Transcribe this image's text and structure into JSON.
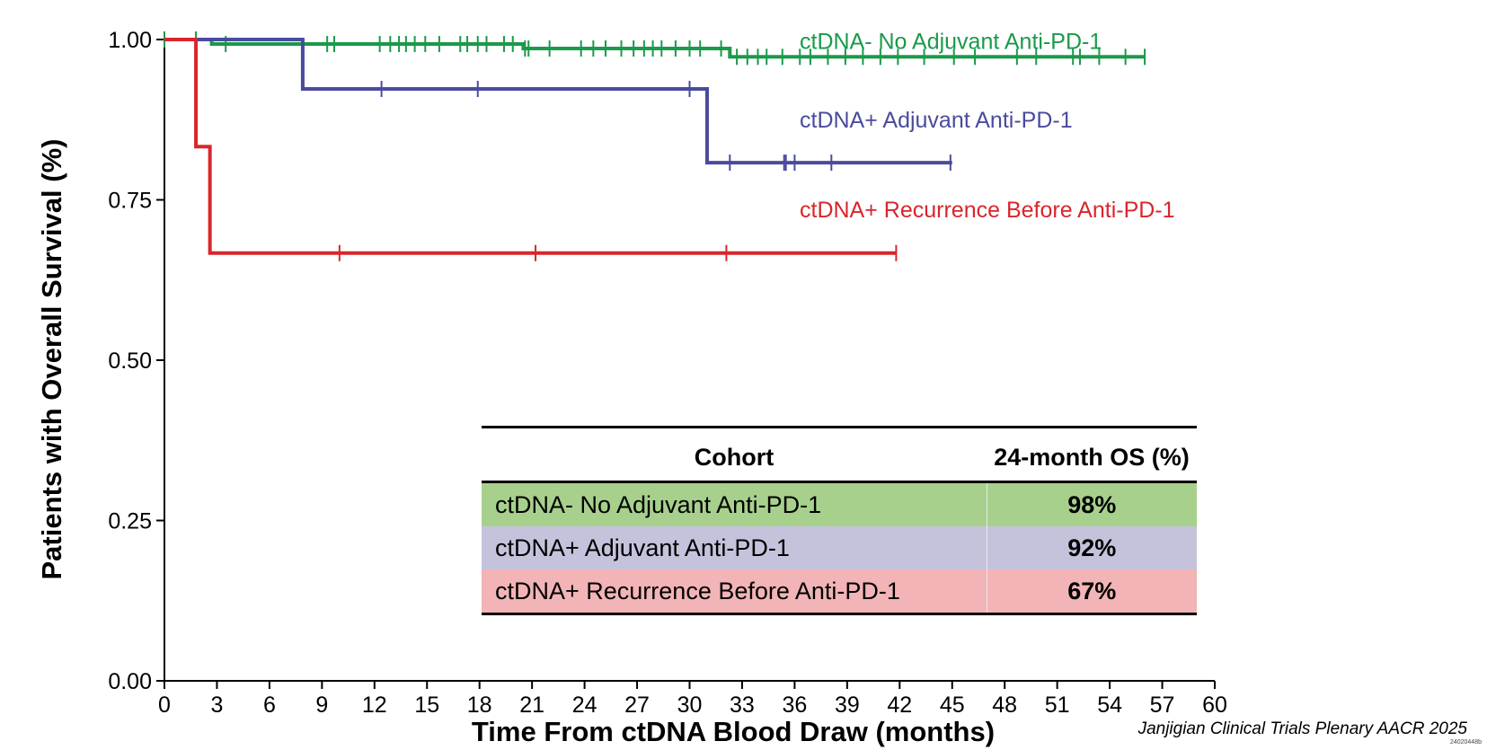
{
  "chart_data": {
    "type": "line",
    "subtype": "kaplan-meier",
    "title": "",
    "xlabel": "Time From ctDNA Blood Draw (months)",
    "ylabel": "Patients with Overall Survival (%)",
    "xlim": [
      0,
      60
    ],
    "ylim": [
      0,
      1
    ],
    "x_ticks": [
      0,
      3,
      6,
      9,
      12,
      15,
      18,
      21,
      24,
      27,
      30,
      33,
      36,
      39,
      42,
      45,
      48,
      51,
      54,
      57,
      60
    ],
    "y_ticks": [
      "0.00",
      "0.25",
      "0.50",
      "0.75",
      "1.00"
    ],
    "grid": false,
    "legend": "direct labels at top-right of plot",
    "series": [
      {
        "name": "ctDNA- No Adjuvant Anti-PD-1",
        "color": "#1a9a4a",
        "steps": [
          [
            0,
            1.0
          ],
          [
            2.7,
            0.993
          ],
          [
            20.5,
            0.986
          ],
          [
            32.3,
            0.973
          ],
          [
            56.0,
            0.973
          ]
        ],
        "censor_x": [
          0,
          1.8,
          3.5,
          9.3,
          9.7,
          12.3,
          12.9,
          13.4,
          13.8,
          14.3,
          14.9,
          15.7,
          16.9,
          17.3,
          17.9,
          18.4,
          19.4,
          19.9,
          20.6,
          20.8,
          22.0,
          23.8,
          24.5,
          25.2,
          26.1,
          26.8,
          27.4,
          27.9,
          28.4,
          29.2,
          30.0,
          30.6,
          31.8,
          32.7,
          33.3,
          33.9,
          34.4,
          35.3,
          36.3,
          36.9,
          37.9,
          38.9,
          39.9,
          40.9,
          41.9,
          43.4,
          45.1,
          46.3,
          48.7,
          49.8,
          51.9,
          52.3,
          53.4,
          54.9,
          56.0
        ]
      },
      {
        "name": "ctDNA+ Adjuvant Anti-PD-1",
        "color": "#4a4b9c",
        "steps": [
          [
            0,
            1.0
          ],
          [
            7.9,
            0.923
          ],
          [
            31.0,
            0.808
          ],
          [
            45.0,
            0.808
          ]
        ],
        "censor_x": [
          12.4,
          17.9,
          30.0,
          32.3,
          35.4,
          35.5,
          36.0,
          38.1,
          44.9
        ]
      },
      {
        "name": "ctDNA+ Recurrence Before Anti-PD-1",
        "color": "#d9262b",
        "steps": [
          [
            0,
            1.0
          ],
          [
            1.8,
            0.833
          ],
          [
            2.6,
            0.667
          ],
          [
            41.8,
            0.667
          ]
        ],
        "censor_x": [
          10.0,
          21.2,
          32.1,
          41.8
        ]
      }
    ]
  },
  "table": {
    "headers": [
      "Cohort",
      "24-month OS (%)"
    ],
    "rows": [
      {
        "cohort": "ctDNA- No Adjuvant Anti-PD-1",
        "os": "98%",
        "bg": "#a8d08d"
      },
      {
        "cohort": "ctDNA+ Adjuvant Anti-PD-1",
        "os": "92%",
        "bg": "#c5c3dc"
      },
      {
        "cohort": "ctDNA+ Recurrence Before Anti-PD-1",
        "os": "67%",
        "bg": "#f2b4b6"
      }
    ]
  },
  "footer": {
    "citation": "Janjigian Clinical Trials Plenary AACR 2025",
    "code": "24020448b"
  }
}
